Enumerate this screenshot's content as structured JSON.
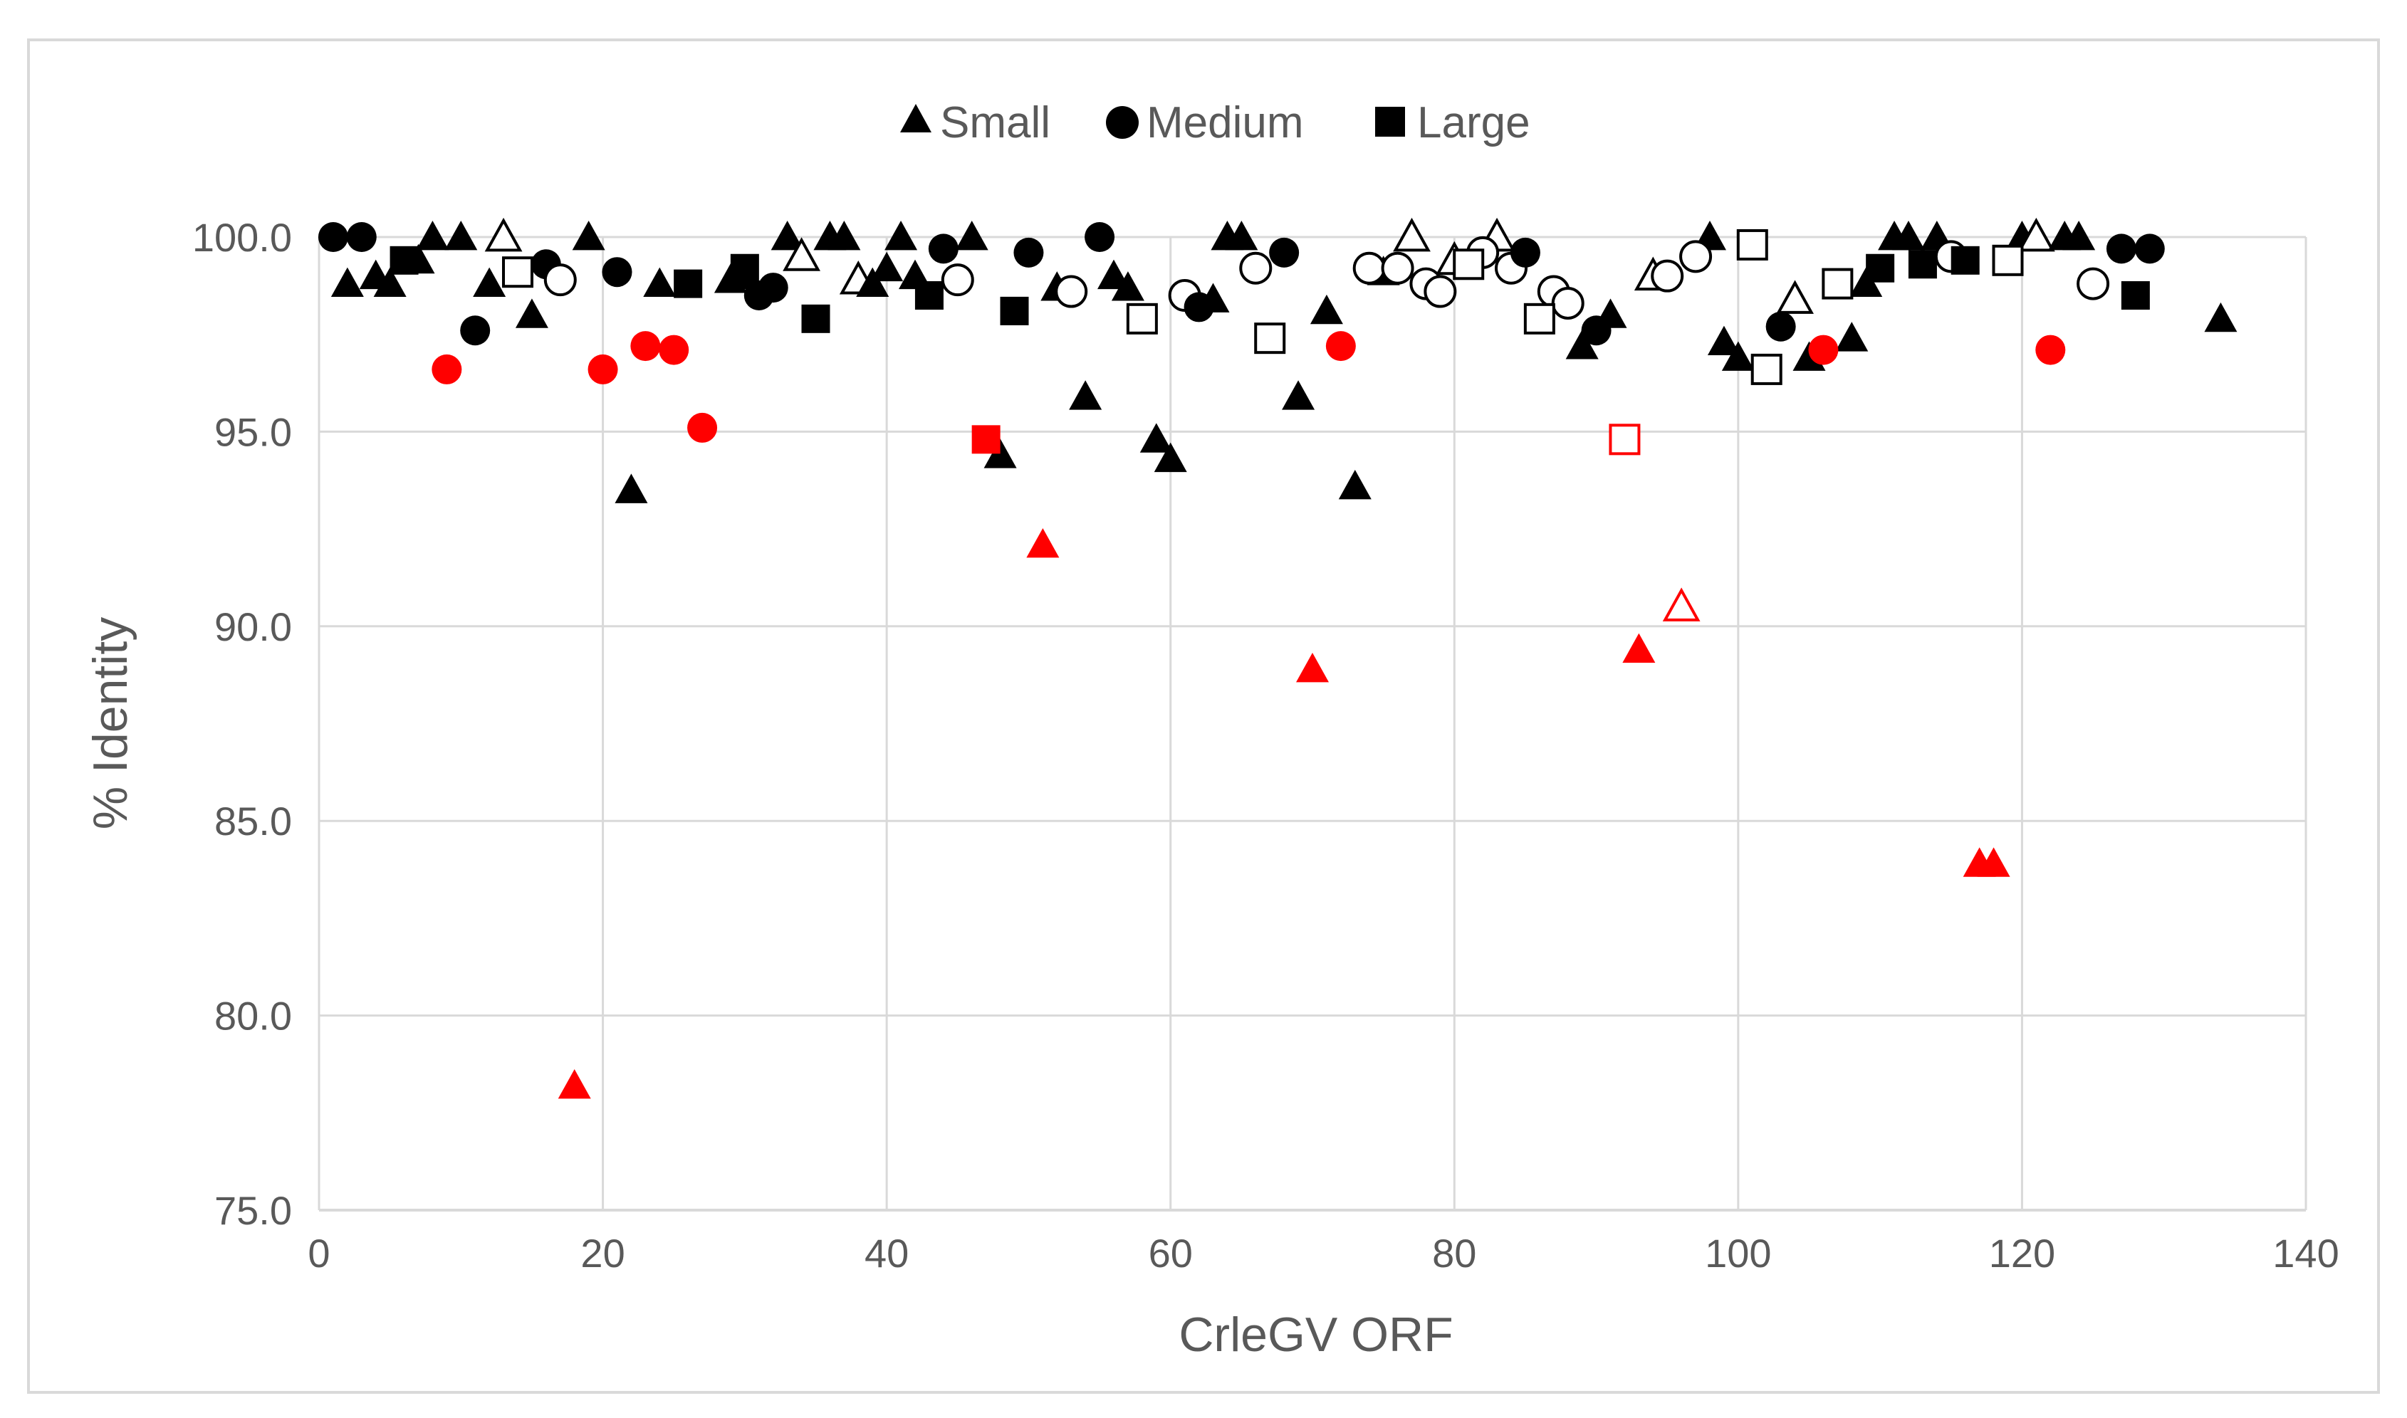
{
  "chart_data": {
    "type": "scatter",
    "title": "",
    "xlabel": "CrleGV ORF",
    "ylabel": "% Identity",
    "xlim": [
      0,
      140
    ],
    "ylim": [
      75,
      100
    ],
    "x_ticks": [
      "0",
      "20",
      "40",
      "60",
      "80",
      "100",
      "120",
      "140"
    ],
    "y_ticks": [
      "75.0",
      "80.0",
      "85.0",
      "90.0",
      "95.0",
      "100.0"
    ],
    "grid": true,
    "legend_position": "top-center",
    "legend": [
      {
        "name": "Small",
        "marker": "triangle"
      },
      {
        "name": "Medium",
        "marker": "circle"
      },
      {
        "name": "Large",
        "marker": "square"
      }
    ],
    "colors": {
      "default": "#000000",
      "highlight": "#ff0000",
      "grid": "#d9d9d9",
      "text": "#595959",
      "frame": "#d9d9d9"
    },
    "series": [
      {
        "name": "Small",
        "marker": "triangle",
        "points": [
          {
            "x": 2,
            "y": 98.8,
            "filled": true,
            "color": "#000000"
          },
          {
            "x": 4,
            "y": 99.0,
            "filled": true,
            "color": "#000000"
          },
          {
            "x": 5,
            "y": 98.8,
            "filled": true,
            "color": "#000000"
          },
          {
            "x": 7,
            "y": 99.4,
            "filled": true,
            "color": "#000000"
          },
          {
            "x": 8,
            "y": 100.0,
            "filled": true,
            "color": "#000000"
          },
          {
            "x": 10,
            "y": 100.0,
            "filled": true,
            "color": "#000000"
          },
          {
            "x": 12,
            "y": 98.8,
            "filled": true,
            "color": "#000000"
          },
          {
            "x": 13,
            "y": 100.0,
            "filled": false,
            "color": "#000000"
          },
          {
            "x": 15,
            "y": 98.0,
            "filled": true,
            "color": "#000000"
          },
          {
            "x": 18,
            "y": 78.2,
            "filled": true,
            "color": "#ff0000"
          },
          {
            "x": 19,
            "y": 100.0,
            "filled": true,
            "color": "#000000"
          },
          {
            "x": 22,
            "y": 93.5,
            "filled": true,
            "color": "#000000"
          },
          {
            "x": 24,
            "y": 98.8,
            "filled": true,
            "color": "#000000"
          },
          {
            "x": 29,
            "y": 98.9,
            "filled": true,
            "color": "#000000"
          },
          {
            "x": 30,
            "y": 99.0,
            "filled": true,
            "color": "#000000"
          },
          {
            "x": 33,
            "y": 100.0,
            "filled": true,
            "color": "#000000"
          },
          {
            "x": 34,
            "y": 99.5,
            "filled": false,
            "color": "#000000"
          },
          {
            "x": 36,
            "y": 100.0,
            "filled": true,
            "color": "#000000"
          },
          {
            "x": 37,
            "y": 100.0,
            "filled": true,
            "color": "#000000"
          },
          {
            "x": 38,
            "y": 98.9,
            "filled": false,
            "color": "#000000"
          },
          {
            "x": 39,
            "y": 98.8,
            "filled": true,
            "color": "#000000"
          },
          {
            "x": 40,
            "y": 99.2,
            "filled": true,
            "color": "#000000"
          },
          {
            "x": 41,
            "y": 100.0,
            "filled": true,
            "color": "#000000"
          },
          {
            "x": 42,
            "y": 99.0,
            "filled": true,
            "color": "#000000"
          },
          {
            "x": 46,
            "y": 100.0,
            "filled": true,
            "color": "#000000"
          },
          {
            "x": 48,
            "y": 94.4,
            "filled": true,
            "color": "#000000"
          },
          {
            "x": 51,
            "y": 92.1,
            "filled": true,
            "color": "#ff0000"
          },
          {
            "x": 52,
            "y": 98.7,
            "filled": true,
            "color": "#000000"
          },
          {
            "x": 54,
            "y": 95.9,
            "filled": true,
            "color": "#000000"
          },
          {
            "x": 56,
            "y": 99.0,
            "filled": true,
            "color": "#000000"
          },
          {
            "x": 57,
            "y": 98.7,
            "filled": true,
            "color": "#000000"
          },
          {
            "x": 59,
            "y": 94.8,
            "filled": true,
            "color": "#000000"
          },
          {
            "x": 60,
            "y": 94.3,
            "filled": true,
            "color": "#000000"
          },
          {
            "x": 63,
            "y": 98.4,
            "filled": true,
            "color": "#000000"
          },
          {
            "x": 64,
            "y": 100.0,
            "filled": true,
            "color": "#000000"
          },
          {
            "x": 65,
            "y": 100.0,
            "filled": true,
            "color": "#000000"
          },
          {
            "x": 69,
            "y": 95.9,
            "filled": true,
            "color": "#000000"
          },
          {
            "x": 70,
            "y": 88.9,
            "filled": true,
            "color": "#ff0000"
          },
          {
            "x": 71,
            "y": 98.1,
            "filled": true,
            "color": "#000000"
          },
          {
            "x": 73,
            "y": 93.6,
            "filled": true,
            "color": "#000000"
          },
          {
            "x": 75,
            "y": 99.1,
            "filled": true,
            "color": "#000000"
          },
          {
            "x": 77,
            "y": 100.0,
            "filled": false,
            "color": "#000000"
          },
          {
            "x": 80,
            "y": 99.4,
            "filled": false,
            "color": "#000000"
          },
          {
            "x": 83,
            "y": 100.0,
            "filled": false,
            "color": "#000000"
          },
          {
            "x": 89,
            "y": 97.2,
            "filled": true,
            "color": "#000000"
          },
          {
            "x": 91,
            "y": 98.0,
            "filled": true,
            "color": "#000000"
          },
          {
            "x": 93,
            "y": 89.4,
            "filled": true,
            "color": "#ff0000"
          },
          {
            "x": 94,
            "y": 99.0,
            "filled": false,
            "color": "#000000"
          },
          {
            "x": 96,
            "y": 90.5,
            "filled": false,
            "color": "#ff0000"
          },
          {
            "x": 98,
            "y": 100.0,
            "filled": true,
            "color": "#000000"
          },
          {
            "x": 99,
            "y": 97.3,
            "filled": true,
            "color": "#000000"
          },
          {
            "x": 100,
            "y": 96.9,
            "filled": true,
            "color": "#000000"
          },
          {
            "x": 104,
            "y": 98.4,
            "filled": false,
            "color": "#000000"
          },
          {
            "x": 105,
            "y": 96.9,
            "filled": true,
            "color": "#000000"
          },
          {
            "x": 108,
            "y": 97.4,
            "filled": true,
            "color": "#000000"
          },
          {
            "x": 109,
            "y": 98.8,
            "filled": true,
            "color": "#000000"
          },
          {
            "x": 111,
            "y": 100.0,
            "filled": true,
            "color": "#000000"
          },
          {
            "x": 112,
            "y": 100.0,
            "filled": true,
            "color": "#000000"
          },
          {
            "x": 114,
            "y": 100.0,
            "filled": true,
            "color": "#000000"
          },
          {
            "x": 117,
            "y": 83.9,
            "filled": true,
            "color": "#ff0000"
          },
          {
            "x": 118,
            "y": 83.9,
            "filled": true,
            "color": "#ff0000"
          },
          {
            "x": 120,
            "y": 100.0,
            "filled": true,
            "color": "#000000"
          },
          {
            "x": 121,
            "y": 100.0,
            "filled": false,
            "color": "#000000"
          },
          {
            "x": 123,
            "y": 100.0,
            "filled": true,
            "color": "#000000"
          },
          {
            "x": 124,
            "y": 100.0,
            "filled": true,
            "color": "#000000"
          },
          {
            "x": 134,
            "y": 97.9,
            "filled": true,
            "color": "#000000"
          }
        ]
      },
      {
        "name": "Medium",
        "marker": "circle",
        "points": [
          {
            "x": 1,
            "y": 100.0,
            "filled": true,
            "color": "#000000"
          },
          {
            "x": 3,
            "y": 100.0,
            "filled": true,
            "color": "#000000"
          },
          {
            "x": 9,
            "y": 96.6,
            "filled": true,
            "color": "#ff0000"
          },
          {
            "x": 11,
            "y": 97.6,
            "filled": true,
            "color": "#000000"
          },
          {
            "x": 16,
            "y": 99.3,
            "filled": true,
            "color": "#000000"
          },
          {
            "x": 17,
            "y": 98.9,
            "filled": false,
            "color": "#000000"
          },
          {
            "x": 20,
            "y": 96.6,
            "filled": true,
            "color": "#ff0000"
          },
          {
            "x": 21,
            "y": 99.1,
            "filled": true,
            "color": "#000000"
          },
          {
            "x": 23,
            "y": 97.2,
            "filled": true,
            "color": "#ff0000"
          },
          {
            "x": 25,
            "y": 97.1,
            "filled": true,
            "color": "#ff0000"
          },
          {
            "x": 27,
            "y": 95.1,
            "filled": true,
            "color": "#ff0000"
          },
          {
            "x": 31,
            "y": 98.5,
            "filled": true,
            "color": "#000000"
          },
          {
            "x": 32,
            "y": 98.7,
            "filled": true,
            "color": "#000000"
          },
          {
            "x": 44,
            "y": 99.7,
            "filled": true,
            "color": "#000000"
          },
          {
            "x": 45,
            "y": 98.9,
            "filled": false,
            "color": "#000000"
          },
          {
            "x": 50,
            "y": 99.6,
            "filled": true,
            "color": "#000000"
          },
          {
            "x": 53,
            "y": 98.6,
            "filled": false,
            "color": "#000000"
          },
          {
            "x": 55,
            "y": 100.0,
            "filled": true,
            "color": "#000000"
          },
          {
            "x": 61,
            "y": 98.5,
            "filled": false,
            "color": "#000000"
          },
          {
            "x": 62,
            "y": 98.2,
            "filled": true,
            "color": "#000000"
          },
          {
            "x": 66,
            "y": 99.2,
            "filled": false,
            "color": "#000000"
          },
          {
            "x": 68,
            "y": 99.6,
            "filled": true,
            "color": "#000000"
          },
          {
            "x": 72,
            "y": 97.2,
            "filled": true,
            "color": "#ff0000"
          },
          {
            "x": 74,
            "y": 99.2,
            "filled": false,
            "color": "#000000"
          },
          {
            "x": 76,
            "y": 99.2,
            "filled": false,
            "color": "#000000"
          },
          {
            "x": 78,
            "y": 98.8,
            "filled": false,
            "color": "#000000"
          },
          {
            "x": 79,
            "y": 98.6,
            "filled": false,
            "color": "#000000"
          },
          {
            "x": 82,
            "y": 99.6,
            "filled": false,
            "color": "#000000"
          },
          {
            "x": 84,
            "y": 99.2,
            "filled": false,
            "color": "#000000"
          },
          {
            "x": 85,
            "y": 99.6,
            "filled": true,
            "color": "#000000"
          },
          {
            "x": 87,
            "y": 98.6,
            "filled": false,
            "color": "#000000"
          },
          {
            "x": 88,
            "y": 98.3,
            "filled": false,
            "color": "#000000"
          },
          {
            "x": 90,
            "y": 97.6,
            "filled": true,
            "color": "#000000"
          },
          {
            "x": 95,
            "y": 99.0,
            "filled": false,
            "color": "#000000"
          },
          {
            "x": 97,
            "y": 99.5,
            "filled": false,
            "color": "#000000"
          },
          {
            "x": 103,
            "y": 97.7,
            "filled": true,
            "color": "#000000"
          },
          {
            "x": 106,
            "y": 97.1,
            "filled": true,
            "color": "#ff0000"
          },
          {
            "x": 115,
            "y": 99.5,
            "filled": false,
            "color": "#000000"
          },
          {
            "x": 122,
            "y": 97.1,
            "filled": true,
            "color": "#ff0000"
          },
          {
            "x": 125,
            "y": 98.8,
            "filled": false,
            "color": "#000000"
          },
          {
            "x": 127,
            "y": 99.7,
            "filled": true,
            "color": "#000000"
          },
          {
            "x": 129,
            "y": 99.7,
            "filled": true,
            "color": "#000000"
          }
        ]
      },
      {
        "name": "Large",
        "marker": "square",
        "points": [
          {
            "x": 6,
            "y": 99.4,
            "filled": true,
            "color": "#000000"
          },
          {
            "x": 14,
            "y": 99.1,
            "filled": false,
            "color": "#000000"
          },
          {
            "x": 26,
            "y": 98.8,
            "filled": true,
            "color": "#000000"
          },
          {
            "x": 30,
            "y": 99.2,
            "filled": true,
            "color": "#000000"
          },
          {
            "x": 35,
            "y": 97.9,
            "filled": true,
            "color": "#000000"
          },
          {
            "x": 43,
            "y": 98.5,
            "filled": true,
            "color": "#000000"
          },
          {
            "x": 47,
            "y": 94.8,
            "filled": true,
            "color": "#ff0000"
          },
          {
            "x": 49,
            "y": 98.1,
            "filled": true,
            "color": "#000000"
          },
          {
            "x": 58,
            "y": 97.9,
            "filled": false,
            "color": "#000000"
          },
          {
            "x": 67,
            "y": 97.4,
            "filled": false,
            "color": "#000000"
          },
          {
            "x": 81,
            "y": 99.3,
            "filled": false,
            "color": "#000000"
          },
          {
            "x": 86,
            "y": 97.9,
            "filled": false,
            "color": "#000000"
          },
          {
            "x": 92,
            "y": 94.8,
            "filled": false,
            "color": "#ff0000"
          },
          {
            "x": 101,
            "y": 99.8,
            "filled": false,
            "color": "#000000"
          },
          {
            "x": 102,
            "y": 96.6,
            "filled": false,
            "color": "#000000"
          },
          {
            "x": 107,
            "y": 98.8,
            "filled": false,
            "color": "#000000"
          },
          {
            "x": 110,
            "y": 99.2,
            "filled": true,
            "color": "#000000"
          },
          {
            "x": 113,
            "y": 99.3,
            "filled": true,
            "color": "#000000"
          },
          {
            "x": 116,
            "y": 99.4,
            "filled": true,
            "color": "#000000"
          },
          {
            "x": 119,
            "y": 99.4,
            "filled": false,
            "color": "#000000"
          },
          {
            "x": 128,
            "y": 98.5,
            "filled": true,
            "color": "#000000"
          }
        ]
      }
    ]
  }
}
